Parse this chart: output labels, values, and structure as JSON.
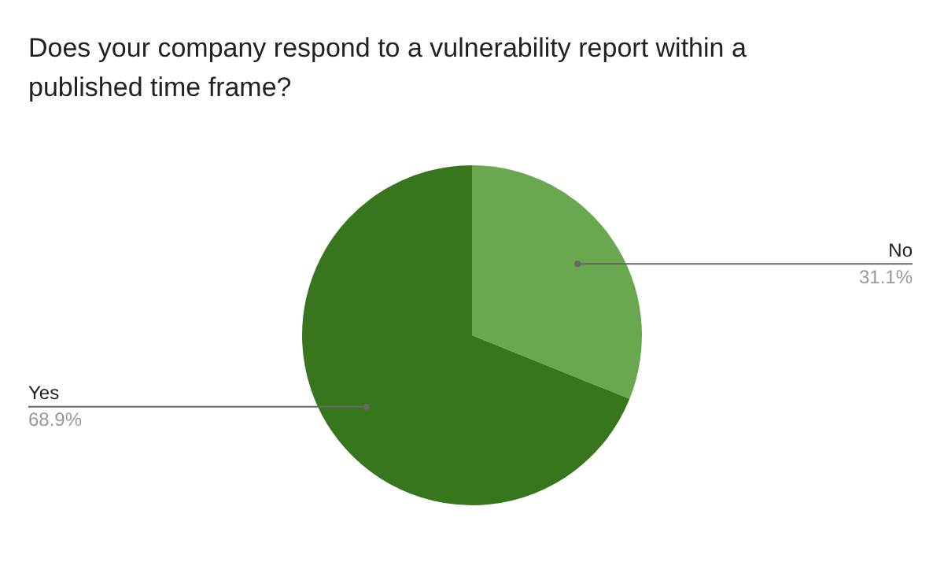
{
  "chart_data": {
    "type": "pie",
    "title": "Does your company respond to a vulnerability report within a published time frame?",
    "categories": [
      "No",
      "Yes"
    ],
    "values": [
      31.1,
      68.9
    ],
    "value_labels": [
      "31.1%",
      "68.9%"
    ],
    "colors": [
      "#6aa84f",
      "#38761d"
    ],
    "legend": false
  }
}
